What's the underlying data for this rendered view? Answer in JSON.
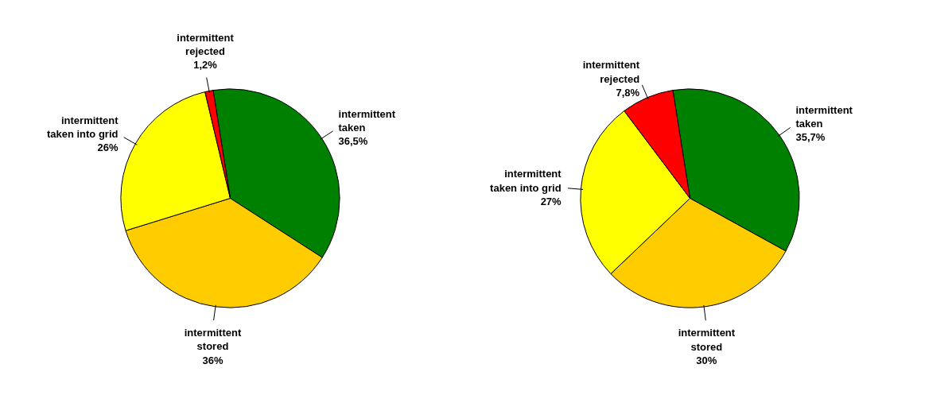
{
  "chart_data": [
    {
      "type": "pie",
      "categories": [
        "intermittent\ntaken",
        "intermittent\nstored",
        "intermittent\ntaken into grid",
        "intermittent\nrejected"
      ],
      "values": [
        36.5,
        36,
        26,
        1.2
      ],
      "colors": [
        "#008000",
        "#ffcc00",
        "#ffff00",
        "#ff0000"
      ],
      "value_labels": [
        "36,5%",
        "36%",
        "26%",
        "1,2%"
      ]
    },
    {
      "type": "pie",
      "categories": [
        "intermittent\ntaken",
        "intermittent\nstored",
        "intermittent\ntaken into grid",
        "intermittent\nrejected"
      ],
      "values": [
        35.7,
        30,
        27,
        7.8
      ],
      "colors": [
        "#008000",
        "#ffcc00",
        "#ffff00",
        "#ff0000"
      ],
      "value_labels": [
        "35,7%",
        "30%",
        "27%",
        "7,8%"
      ]
    }
  ]
}
